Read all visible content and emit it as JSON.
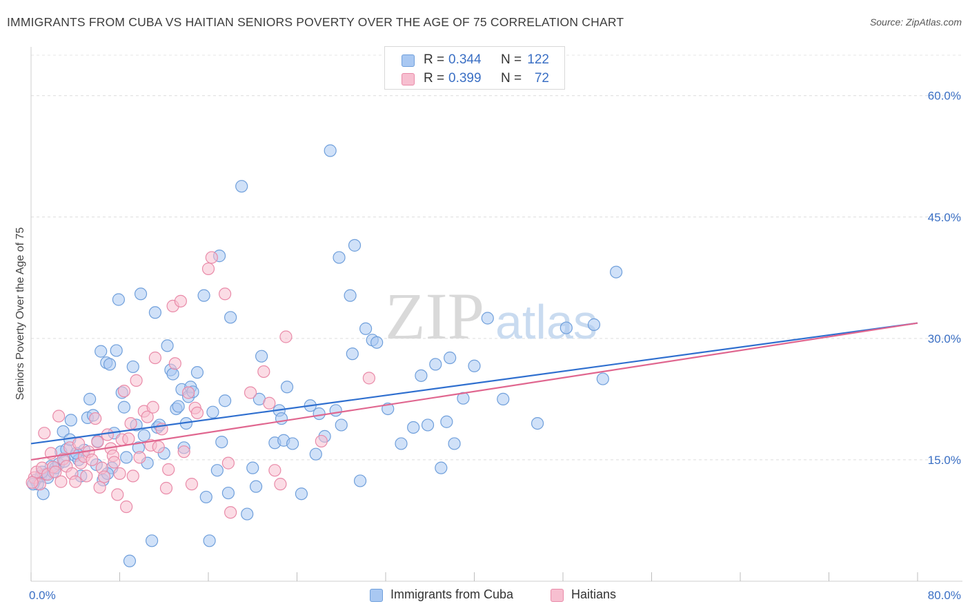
{
  "title": "IMMIGRANTS FROM CUBA VS HAITIAN SENIORS POVERTY OVER THE AGE OF 75 CORRELATION CHART",
  "source": "Source: ZipAtlas.com",
  "watermark": {
    "zip": "ZIP",
    "atlas": "atlas"
  },
  "legend_top": {
    "rows": [
      {
        "r_label": "R =",
        "r_value": "0.344",
        "n_label": "N =",
        "n_value": "122"
      },
      {
        "r_label": "R =",
        "r_value": "0.399",
        "n_label": "N =",
        "n_value": "72"
      }
    ]
  },
  "legend_bottom": {
    "items": [
      "Immigrants from Cuba",
      "Haitians"
    ]
  },
  "colors": {
    "blue_fill": "#a9c8f2",
    "blue_stroke": "#6f9fdb",
    "blue_line": "#2f6fcf",
    "pink_fill": "#f7bfd0",
    "pink_stroke": "#e98aa8",
    "pink_line": "#e0668f",
    "axis_text": "#3a6fc4"
  },
  "chart_data": {
    "type": "scatter",
    "title": "IMMIGRANTS FROM CUBA VS HAITIAN SENIORS POVERTY OVER THE AGE OF 75 CORRELATION CHART",
    "xlabel": "",
    "ylabel": "Seniors Poverty Over the Age of 75",
    "xlim": [
      0,
      80
    ],
    "ylim": [
      0,
      65
    ],
    "x_tick_labels": [
      "0.0%",
      "80.0%"
    ],
    "y_ticks": [
      15,
      30,
      45,
      60
    ],
    "y_tick_labels": [
      "15.0%",
      "30.0%",
      "45.0%",
      "60.0%"
    ],
    "grid": true,
    "series": [
      {
        "name": "Immigrants from Cuba",
        "r": 0.344,
        "n": 122,
        "trend": {
          "x": [
            0,
            80
          ],
          "y": [
            17.0,
            31.9
          ]
        },
        "points": [
          [
            0.4,
            12.5
          ],
          [
            0.6,
            12.0
          ],
          [
            0.9,
            13.0
          ],
          [
            1.1,
            10.8
          ],
          [
            1.3,
            13.2
          ],
          [
            1.5,
            12.8
          ],
          [
            1.8,
            14.2
          ],
          [
            2.0,
            13.5
          ],
          [
            2.2,
            14.0
          ],
          [
            2.5,
            14.5
          ],
          [
            2.7,
            16.0
          ],
          [
            2.9,
            18.5
          ],
          [
            3.2,
            16.3
          ],
          [
            3.5,
            17.5
          ],
          [
            3.6,
            19.9
          ],
          [
            4.0,
            15.5
          ],
          [
            4.3,
            15.0
          ],
          [
            4.5,
            13.0
          ],
          [
            4.8,
            16.2
          ],
          [
            5.1,
            20.2
          ],
          [
            5.3,
            22.5
          ],
          [
            5.6,
            20.5
          ],
          [
            5.9,
            14.4
          ],
          [
            6.0,
            17.3
          ],
          [
            6.3,
            28.4
          ],
          [
            6.5,
            12.5
          ],
          [
            6.8,
            27.0
          ],
          [
            7.1,
            26.8
          ],
          [
            7.3,
            14.0
          ],
          [
            7.5,
            18.3
          ],
          [
            7.7,
            28.5
          ],
          [
            7.9,
            34.8
          ],
          [
            8.2,
            23.3
          ],
          [
            8.4,
            21.5
          ],
          [
            8.6,
            15.3
          ],
          [
            8.9,
            2.5
          ],
          [
            9.2,
            26.5
          ],
          [
            9.5,
            19.3
          ],
          [
            9.7,
            16.5
          ],
          [
            9.9,
            35.5
          ],
          [
            10.2,
            18.0
          ],
          [
            10.5,
            14.6
          ],
          [
            10.9,
            5.0
          ],
          [
            11.2,
            33.2
          ],
          [
            11.4,
            19.0
          ],
          [
            11.6,
            19.3
          ],
          [
            12.0,
            15.8
          ],
          [
            12.3,
            29.1
          ],
          [
            12.6,
            26.1
          ],
          [
            12.8,
            25.6
          ],
          [
            13.1,
            21.3
          ],
          [
            13.3,
            21.6
          ],
          [
            13.6,
            23.7
          ],
          [
            13.8,
            16.5
          ],
          [
            14.0,
            19.5
          ],
          [
            14.2,
            22.8
          ],
          [
            14.4,
            24.0
          ],
          [
            14.6,
            23.4
          ],
          [
            15.0,
            25.8
          ],
          [
            15.6,
            35.3
          ],
          [
            15.8,
            10.4
          ],
          [
            16.1,
            5.0
          ],
          [
            16.4,
            20.9
          ],
          [
            16.8,
            13.7
          ],
          [
            17.0,
            40.2
          ],
          [
            17.2,
            17.2
          ],
          [
            17.5,
            22.3
          ],
          [
            17.8,
            10.9
          ],
          [
            18.0,
            32.6
          ],
          [
            19.0,
            48.8
          ],
          [
            19.5,
            8.3
          ],
          [
            20.0,
            14.0
          ],
          [
            20.3,
            11.7
          ],
          [
            20.6,
            22.5
          ],
          [
            20.8,
            27.8
          ],
          [
            22.0,
            17.1
          ],
          [
            22.4,
            21.1
          ],
          [
            22.6,
            20.1
          ],
          [
            22.8,
            17.4
          ],
          [
            23.1,
            24.0
          ],
          [
            23.6,
            17.0
          ],
          [
            24.4,
            10.8
          ],
          [
            25.2,
            21.7
          ],
          [
            25.7,
            15.7
          ],
          [
            26.0,
            20.7
          ],
          [
            26.5,
            17.9
          ],
          [
            27.0,
            53.2
          ],
          [
            27.5,
            21.1
          ],
          [
            27.8,
            40.0
          ],
          [
            28.0,
            19.3
          ],
          [
            28.8,
            35.3
          ],
          [
            29.0,
            28.1
          ],
          [
            29.2,
            41.5
          ],
          [
            29.7,
            12.4
          ],
          [
            30.2,
            31.2
          ],
          [
            30.8,
            29.8
          ],
          [
            31.2,
            29.5
          ],
          [
            32.2,
            21.3
          ],
          [
            33.4,
            17.0
          ],
          [
            34.5,
            19.0
          ],
          [
            35.2,
            25.4
          ],
          [
            35.8,
            19.3
          ],
          [
            36.5,
            26.8
          ],
          [
            37.0,
            14.0
          ],
          [
            37.5,
            19.7
          ],
          [
            37.8,
            27.6
          ],
          [
            38.2,
            17.0
          ],
          [
            39.0,
            22.6
          ],
          [
            40.0,
            26.6
          ],
          [
            41.2,
            32.5
          ],
          [
            42.6,
            22.5
          ],
          [
            45.7,
            19.5
          ],
          [
            48.3,
            31.3
          ],
          [
            50.8,
            31.7
          ],
          [
            51.6,
            25.0
          ],
          [
            52.8,
            38.2
          ],
          [
            0.2,
            12.0
          ],
          [
            1.0,
            13.5
          ],
          [
            3.0,
            14.8
          ],
          [
            4.1,
            15.8
          ],
          [
            6.9,
            13.3
          ]
        ]
      },
      {
        "name": "Haitians",
        "r": 0.399,
        "n": 72,
        "trend": {
          "x": [
            0,
            80
          ],
          "y": [
            15.0,
            31.9
          ]
        },
        "points": [
          [
            0.3,
            12.8
          ],
          [
            0.5,
            13.5
          ],
          [
            0.8,
            12.0
          ],
          [
            1.0,
            14.0
          ],
          [
            1.2,
            18.3
          ],
          [
            1.5,
            13.2
          ],
          [
            1.8,
            15.8
          ],
          [
            2.0,
            14.1
          ],
          [
            2.2,
            13.5
          ],
          [
            2.5,
            20.4
          ],
          [
            2.7,
            12.3
          ],
          [
            2.9,
            15.1
          ],
          [
            3.2,
            14.2
          ],
          [
            3.5,
            16.5
          ],
          [
            3.7,
            13.3
          ],
          [
            4.0,
            12.3
          ],
          [
            4.3,
            17.0
          ],
          [
            4.5,
            14.6
          ],
          [
            4.8,
            15.4
          ],
          [
            5.0,
            13.0
          ],
          [
            5.2,
            16.0
          ],
          [
            5.5,
            15.0
          ],
          [
            5.8,
            20.1
          ],
          [
            6.0,
            17.2
          ],
          [
            6.2,
            11.6
          ],
          [
            6.4,
            14.0
          ],
          [
            6.6,
            12.9
          ],
          [
            6.9,
            18.1
          ],
          [
            7.2,
            16.4
          ],
          [
            7.4,
            15.5
          ],
          [
            7.5,
            14.7
          ],
          [
            7.8,
            10.7
          ],
          [
            8.0,
            13.3
          ],
          [
            8.2,
            17.5
          ],
          [
            8.4,
            23.5
          ],
          [
            8.6,
            9.2
          ],
          [
            8.8,
            17.6
          ],
          [
            9.0,
            19.5
          ],
          [
            9.2,
            13.0
          ],
          [
            9.5,
            24.8
          ],
          [
            9.8,
            15.3
          ],
          [
            10.2,
            21.0
          ],
          [
            10.5,
            20.3
          ],
          [
            10.8,
            16.8
          ],
          [
            11.0,
            21.5
          ],
          [
            11.2,
            27.6
          ],
          [
            11.5,
            16.6
          ],
          [
            11.8,
            18.8
          ],
          [
            12.2,
            11.5
          ],
          [
            12.4,
            13.8
          ],
          [
            12.8,
            34.0
          ],
          [
            13.0,
            26.9
          ],
          [
            13.5,
            34.6
          ],
          [
            13.8,
            16.0
          ],
          [
            14.2,
            23.3
          ],
          [
            14.5,
            12.0
          ],
          [
            14.8,
            21.4
          ],
          [
            15.0,
            20.8
          ],
          [
            16.0,
            38.6
          ],
          [
            16.3,
            40.0
          ],
          [
            17.5,
            35.5
          ],
          [
            17.8,
            14.6
          ],
          [
            18.0,
            8.5
          ],
          [
            19.8,
            23.3
          ],
          [
            21.0,
            25.9
          ],
          [
            21.5,
            22.0
          ],
          [
            22.0,
            13.7
          ],
          [
            22.5,
            12.0
          ],
          [
            23.0,
            30.2
          ],
          [
            26.2,
            17.3
          ],
          [
            30.5,
            25.1
          ],
          [
            0.1,
            12.2
          ]
        ]
      }
    ]
  }
}
